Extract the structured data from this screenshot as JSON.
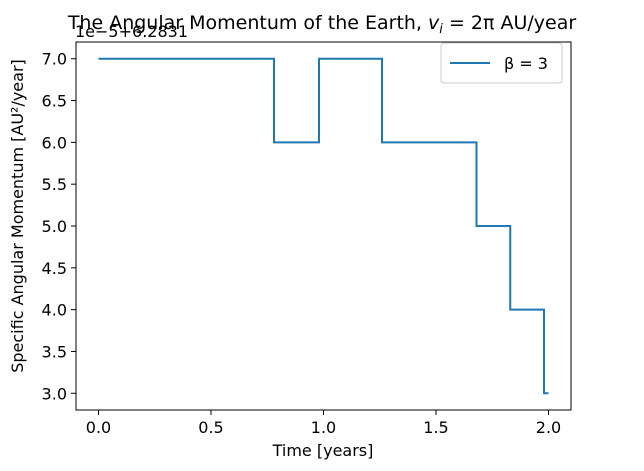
{
  "chart_data": {
    "type": "line",
    "title_prefix": "The Angular Momentum of the Earth, ",
    "title_math": "v",
    "title_math_sub": "i",
    "title_suffix": " = 2π AU/year",
    "xlabel": "Time [years]",
    "ylabel": "Specific Angular Momentum [AU²/year]",
    "y_offset_text": "1e−5+6.2831",
    "xlim": [
      -0.1,
      2.1
    ],
    "ylim": [
      2.8,
      7.2
    ],
    "xticks": [
      0.0,
      0.5,
      1.0,
      1.5,
      2.0
    ],
    "xtick_labels": [
      "0.0",
      "0.5",
      "1.0",
      "1.5",
      "2.0"
    ],
    "yticks": [
      3.0,
      3.5,
      4.0,
      4.5,
      5.0,
      5.5,
      6.0,
      6.5,
      7.0
    ],
    "ytick_labels": [
      "3.0",
      "3.5",
      "4.0",
      "4.5",
      "5.0",
      "5.5",
      "6.0",
      "6.5",
      "7.0"
    ],
    "grid": false,
    "legend_position": "top-right",
    "series": [
      {
        "name": "β = 3",
        "color": "#1f77b4",
        "points": [
          [
            0.0,
            7.0
          ],
          [
            0.78,
            7.0
          ],
          [
            0.78,
            6.0
          ],
          [
            0.98,
            6.0
          ],
          [
            0.98,
            7.0
          ],
          [
            1.26,
            7.0
          ],
          [
            1.26,
            6.0
          ],
          [
            1.68,
            6.0
          ],
          [
            1.68,
            5.0
          ],
          [
            1.83,
            5.0
          ],
          [
            1.83,
            4.0
          ],
          [
            1.98,
            4.0
          ],
          [
            1.98,
            3.0
          ],
          [
            2.0,
            3.0
          ]
        ]
      }
    ]
  }
}
